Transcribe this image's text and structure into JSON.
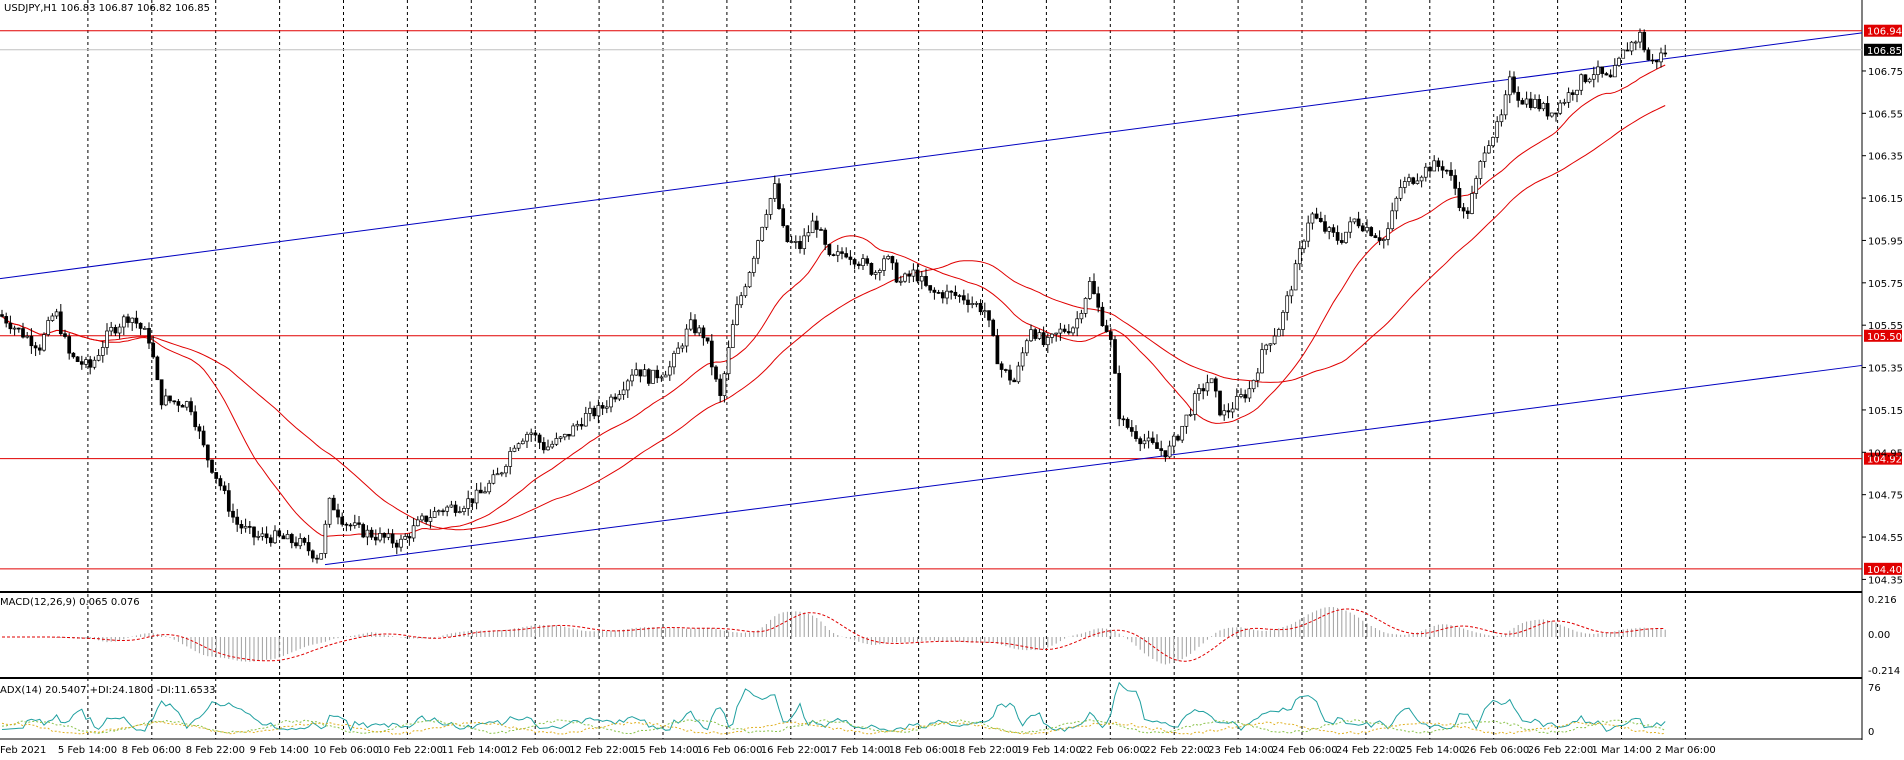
{
  "header": {
    "main": "USDJPY,H1  106.83 106.87 106.82 106.85",
    "macd": "MACD(12,26,9) 0.065 0.076",
    "adx": "ADX(14) 20.5407 +DI:24.1800 -DI:11.6533"
  },
  "chart_data": {
    "type": "candlestick",
    "symbol": "USDJPY",
    "timeframe": "H1",
    "ohlc_last": {
      "open": 106.83,
      "high": 106.87,
      "low": 106.82,
      "close": 106.85
    },
    "y_range": [
      104.3,
      107.0
    ],
    "price_ticks": [
      "106.75",
      "106.55",
      "106.35",
      "106.15",
      "105.95",
      "105.75",
      "105.55",
      "105.35",
      "105.15",
      "104.95",
      "104.75",
      "104.55",
      "104.35"
    ],
    "horizontal_levels": [
      {
        "value": 106.94,
        "label": "106.94",
        "color": "#e00000"
      },
      {
        "value": 105.5,
        "label": "105.50",
        "color": "#e00000"
      },
      {
        "value": 104.92,
        "label": "104.92",
        "color": "#e00000"
      },
      {
        "value": 104.4,
        "label": "104.40",
        "color": "#e00000"
      }
    ],
    "current_price": {
      "value": 106.85,
      "label": "106.85"
    },
    "x_labels": [
      "Feb 2021",
      "5 Feb 14:00",
      "8 Feb 06:00",
      "8 Feb 22:00",
      "9 Feb 14:00",
      "10 Feb 06:00",
      "10 Feb 22:00",
      "11 Feb 14:00",
      "12 Feb 06:00",
      "12 Feb 22:00",
      "15 Feb 14:00",
      "16 Feb 06:00",
      "16 Feb 22:00",
      "17 Feb 14:00",
      "18 Feb 06:00",
      "18 Feb 22:00",
      "19 Feb 14:00",
      "22 Feb 06:00",
      "22 Feb 22:00",
      "23 Feb 14:00",
      "24 Feb 06:00",
      "24 Feb 22:00",
      "25 Feb 14:00",
      "26 Feb 06:00",
      "26 Feb 22:00",
      "1 Mar 14:00",
      "2 Mar 06:00"
    ],
    "close_path": [
      [
        0,
        105.6
      ],
      [
        20,
        105.52
      ],
      [
        40,
        105.45
      ],
      [
        55,
        105.62
      ],
      [
        70,
        105.4
      ],
      [
        90,
        105.35
      ],
      [
        110,
        105.52
      ],
      [
        130,
        105.6
      ],
      [
        150,
        105.48
      ],
      [
        160,
        105.2
      ],
      [
        190,
        105.18
      ],
      [
        205,
        104.95
      ],
      [
        220,
        104.8
      ],
      [
        235,
        104.62
      ],
      [
        255,
        104.55
      ],
      [
        275,
        104.55
      ],
      [
        300,
        104.52
      ],
      [
        320,
        104.45
      ],
      [
        330,
        104.72
      ],
      [
        345,
        104.62
      ],
      [
        360,
        104.58
      ],
      [
        380,
        104.55
      ],
      [
        400,
        104.52
      ],
      [
        420,
        104.62
      ],
      [
        440,
        104.68
      ],
      [
        460,
        104.7
      ],
      [
        480,
        104.75
      ],
      [
        500,
        104.85
      ],
      [
        515,
        105.0
      ],
      [
        530,
        105.05
      ],
      [
        545,
        104.97
      ],
      [
        565,
        105.02
      ],
      [
        585,
        105.12
      ],
      [
        600,
        105.15
      ],
      [
        620,
        105.25
      ],
      [
        635,
        105.35
      ],
      [
        650,
        105.3
      ],
      [
        670,
        105.35
      ],
      [
        690,
        105.55
      ],
      [
        705,
        105.5
      ],
      [
        720,
        105.2
      ],
      [
        735,
        105.6
      ],
      [
        750,
        105.82
      ],
      [
        765,
        106.08
      ],
      [
        775,
        106.2
      ],
      [
        785,
        105.95
      ],
      [
        800,
        105.92
      ],
      [
        815,
        106.05
      ],
      [
        830,
        105.85
      ],
      [
        845,
        105.9
      ],
      [
        860,
        105.85
      ],
      [
        875,
        105.8
      ],
      [
        885,
        105.88
      ],
      [
        900,
        105.75
      ],
      [
        915,
        105.8
      ],
      [
        930,
        105.7
      ],
      [
        945,
        105.7
      ],
      [
        965,
        105.68
      ],
      [
        985,
        105.62
      ],
      [
        1000,
        105.35
      ],
      [
        1015,
        105.28
      ],
      [
        1030,
        105.55
      ],
      [
        1045,
        105.45
      ],
      [
        1060,
        105.52
      ],
      [
        1075,
        105.55
      ],
      [
        1090,
        105.75
      ],
      [
        1100,
        105.6
      ],
      [
        1110,
        105.5
      ],
      [
        1120,
        105.1
      ],
      [
        1140,
        105.02
      ],
      [
        1155,
        104.97
      ],
      [
        1168,
        104.95
      ],
      [
        1180,
        105.05
      ],
      [
        1195,
        105.2
      ],
      [
        1210,
        105.3
      ],
      [
        1222,
        105.12
      ],
      [
        1235,
        105.18
      ],
      [
        1250,
        105.25
      ],
      [
        1265,
        105.45
      ],
      [
        1280,
        105.55
      ],
      [
        1295,
        105.8
      ],
      [
        1310,
        106.08
      ],
      [
        1325,
        106.0
      ],
      [
        1340,
        105.95
      ],
      [
        1355,
        106.05
      ],
      [
        1370,
        106.0
      ],
      [
        1385,
        105.95
      ],
      [
        1400,
        106.2
      ],
      [
        1415,
        106.25
      ],
      [
        1430,
        106.3
      ],
      [
        1445,
        106.3
      ],
      [
        1455,
        106.2
      ],
      [
        1465,
        106.05
      ],
      [
        1475,
        106.2
      ],
      [
        1485,
        106.4
      ],
      [
        1500,
        106.5
      ],
      [
        1510,
        106.7
      ],
      [
        1520,
        106.62
      ],
      [
        1535,
        106.6
      ],
      [
        1550,
        106.55
      ],
      [
        1565,
        106.62
      ],
      [
        1580,
        106.7
      ],
      [
        1595,
        106.75
      ],
      [
        1610,
        106.7
      ],
      [
        1625,
        106.85
      ],
      [
        1640,
        106.92
      ],
      [
        1650,
        106.78
      ],
      [
        1660,
        106.82
      ],
      [
        1668,
        106.85
      ]
    ],
    "indicators": [
      {
        "name": "MACD(12,26,9)",
        "main": 0.065,
        "signal": 0.076,
        "ticks": [
          "0.216",
          "0.00",
          "-0.214"
        ]
      },
      {
        "name": "ADX(14)",
        "adx": 20.5407,
        "plus_di": 24.18,
        "minus_di": 11.6533,
        "ticks": [
          "76",
          "0"
        ]
      }
    ],
    "colors": {
      "moving_averages": "#e00000",
      "trendlines": "#0000c0",
      "adx_line": "#20a0a0",
      "plus_di": "#8bc34a",
      "minus_di": "#e0b020",
      "level_label_bg": "#e00000"
    },
    "grid": true
  }
}
